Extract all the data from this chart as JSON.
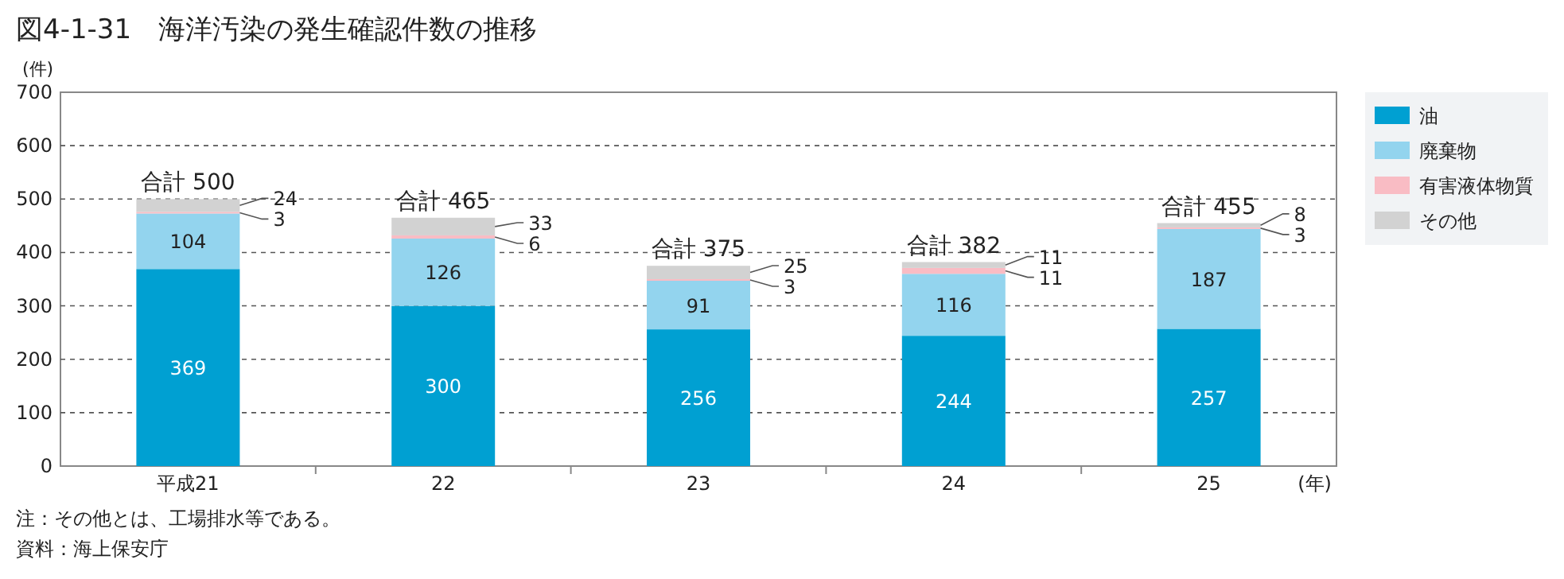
{
  "chart_data": {
    "type": "bar",
    "stacked": true,
    "title": "図4-1-31　海洋汚染の発生確認件数の推移",
    "ylabel": "(件)",
    "xlabel": "(年)",
    "categories": [
      "平成21",
      "22",
      "23",
      "24",
      "25"
    ],
    "series": [
      {
        "name": "油",
        "color": "#00a0d2",
        "values": [
          369,
          300,
          256,
          244,
          257
        ]
      },
      {
        "name": "廃棄物",
        "color": "#93d4ee",
        "values": [
          104,
          126,
          91,
          116,
          187
        ]
      },
      {
        "name": "有害液体物質",
        "color": "#f9bcc4",
        "values": [
          3,
          6,
          3,
          11,
          3
        ]
      },
      {
        "name": "その他",
        "color": "#d2d2d2",
        "values": [
          24,
          33,
          25,
          11,
          8
        ]
      }
    ],
    "totals": [
      "合計 500",
      "合計 465",
      "合計 375",
      "合計 382",
      "合計 455"
    ],
    "data_labels": true,
    "ylim": [
      0,
      700
    ],
    "yticks": [
      0,
      100,
      200,
      300,
      400,
      500,
      600,
      700
    ],
    "grid": "y",
    "legend": "top right",
    "annotations": [
      "注：その他とは、工場排水等である。",
      "資料：海上保安庁"
    ]
  }
}
